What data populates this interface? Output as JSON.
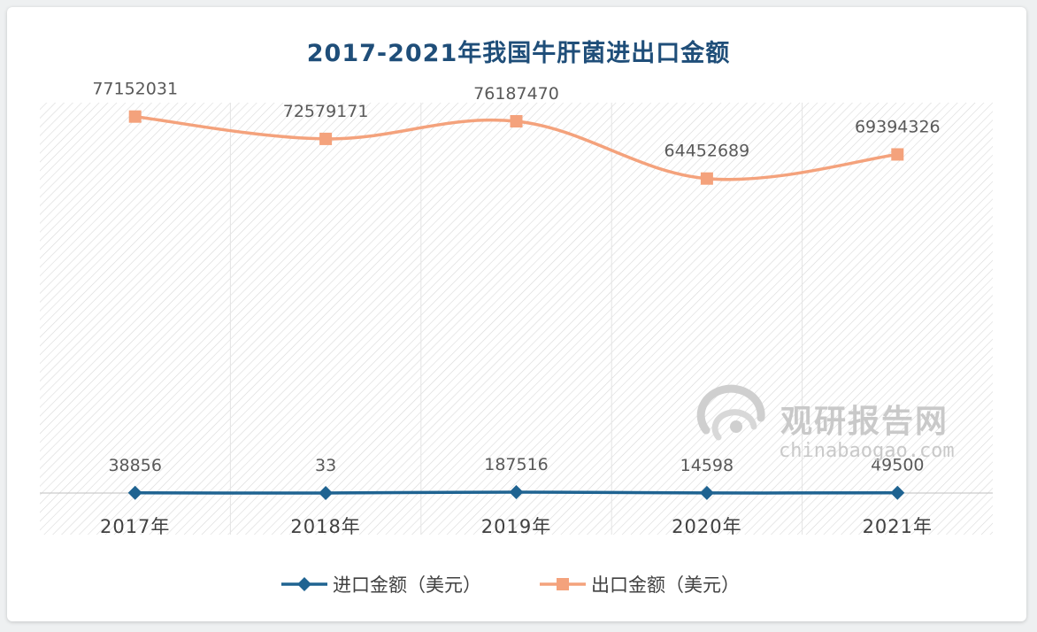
{
  "chart_data": {
    "type": "line",
    "title": "2017-2021年我国牛肝菌进出口金额",
    "categories": [
      "2017年",
      "2018年",
      "2019年",
      "2020年",
      "2021年"
    ],
    "series": [
      {
        "name": "进口金额（美元）",
        "color": "#1f6391",
        "marker": "diamond",
        "values": [
          38856,
          33,
          187516,
          14598,
          49500
        ],
        "labels": [
          "38856",
          "33",
          "187516",
          "14598",
          "49500"
        ]
      },
      {
        "name": "出口金额（美元）",
        "color": "#f4a27c",
        "marker": "square",
        "values": [
          77152031,
          72579171,
          76187470,
          64452689,
          69394326
        ],
        "labels": [
          "77152031",
          "72579171",
          "76187470",
          "64452689",
          "69394326"
        ]
      }
    ],
    "ylim": [
      0,
      80000000
    ],
    "grid": false,
    "legend_position": "bottom",
    "smooth": true
  },
  "watermark": {
    "cn": "观研报告网",
    "en": "chinabaogao.com"
  }
}
